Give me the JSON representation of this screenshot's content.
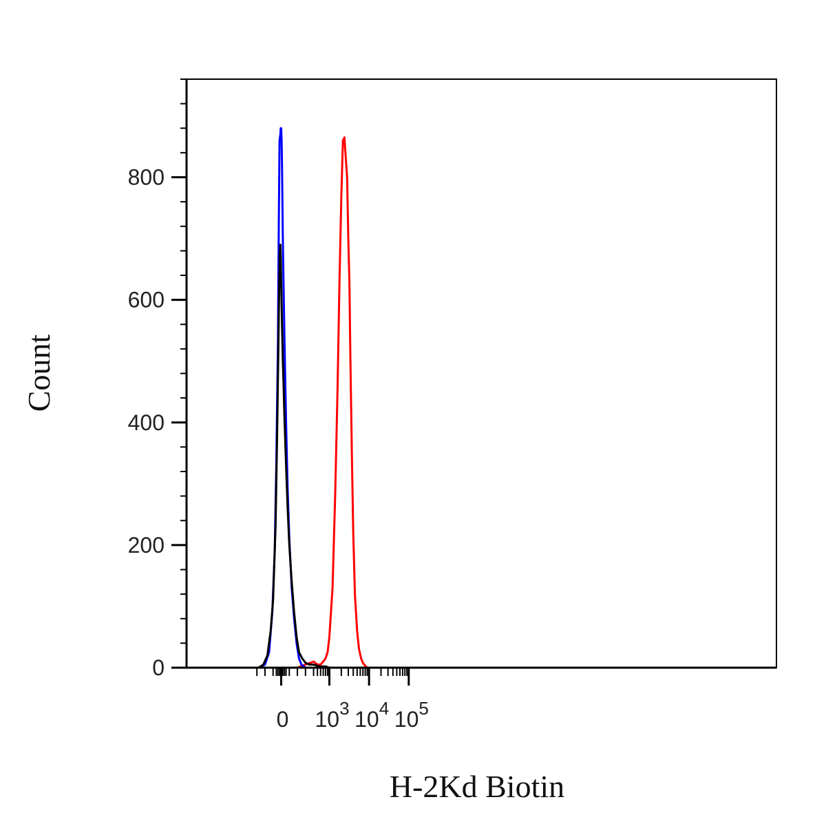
{
  "chart_data": {
    "type": "line",
    "xlabel": "H-2Kd Biotin",
    "ylabel": "Count",
    "x_scale": "biexponential",
    "xlim": [
      -300,
      150000
    ],
    "ylim": [
      0,
      960
    ],
    "y_ticks": [
      {
        "value": 0,
        "label": "0"
      },
      {
        "value": 200,
        "label": "200"
      },
      {
        "value": 400,
        "label": "400"
      },
      {
        "value": 600,
        "label": "600"
      },
      {
        "value": 800,
        "label": "800"
      }
    ],
    "x_ticks": [
      {
        "value": 0,
        "base": "0",
        "exp": ""
      },
      {
        "value": 1000,
        "base": "10",
        "exp": "3"
      },
      {
        "value": 10000,
        "base": "10",
        "exp": "4"
      },
      {
        "value": 100000,
        "base": "10",
        "exp": "5"
      }
    ],
    "legend": "none",
    "grid": false,
    "colors": {
      "blue": "#0000ff",
      "black": "#000000",
      "red": "#ff0000"
    },
    "series": [
      {
        "color": "#0000ff",
        "x": [
          -260,
          -200,
          -150,
          -110,
          -80,
          -60,
          -40,
          -30,
          -20,
          -10,
          -5,
          0,
          5,
          10,
          20,
          30,
          40,
          60,
          80,
          100,
          130,
          160,
          190,
          220,
          250,
          300,
          400,
          600,
          1000,
          3000,
          10000,
          100000
        ],
        "y": [
          0,
          5,
          25,
          90,
          190,
          330,
          530,
          720,
          860,
          870,
          880,
          880,
          860,
          820,
          700,
          620,
          540,
          400,
          290,
          210,
          130,
          80,
          40,
          15,
          5,
          0,
          0,
          0,
          0,
          0,
          0,
          0
        ]
      },
      {
        "color": "#000000",
        "x": [
          -280,
          -220,
          -170,
          -130,
          -100,
          -70,
          -50,
          -35,
          -25,
          -15,
          -10,
          -5,
          0,
          10,
          20,
          30,
          40,
          60,
          80,
          100,
          130,
          160,
          190,
          220,
          260,
          300,
          350,
          400,
          500,
          600,
          800,
          1000,
          3000,
          10000,
          100000
        ],
        "y": [
          0,
          5,
          20,
          60,
          110,
          230,
          380,
          520,
          620,
          680,
          690,
          670,
          630,
          560,
          500,
          460,
          410,
          330,
          260,
          200,
          140,
          90,
          50,
          25,
          15,
          8,
          5,
          5,
          3,
          2,
          2,
          0,
          0,
          0,
          0
        ]
      },
      {
        "color": "#ff0000",
        "x": [
          -300,
          200,
          300,
          400,
          500,
          600,
          700,
          800,
          900,
          1000,
          1200,
          1400,
          1600,
          1800,
          2000,
          2200,
          2400,
          2600,
          2800,
          3000,
          3200,
          3400,
          3700,
          4000,
          4400,
          5000,
          5600,
          6300,
          7000,
          8000,
          9000,
          10000,
          11000,
          12000,
          14000,
          20000,
          150000
        ],
        "y": [
          0,
          0,
          5,
          10,
          5,
          5,
          10,
          15,
          25,
          50,
          130,
          280,
          450,
          630,
          770,
          860,
          865,
          830,
          800,
          700,
          630,
          500,
          340,
          220,
          120,
          60,
          30,
          15,
          8,
          3,
          0,
          0,
          0,
          0,
          0,
          0,
          0
        ]
      }
    ]
  }
}
